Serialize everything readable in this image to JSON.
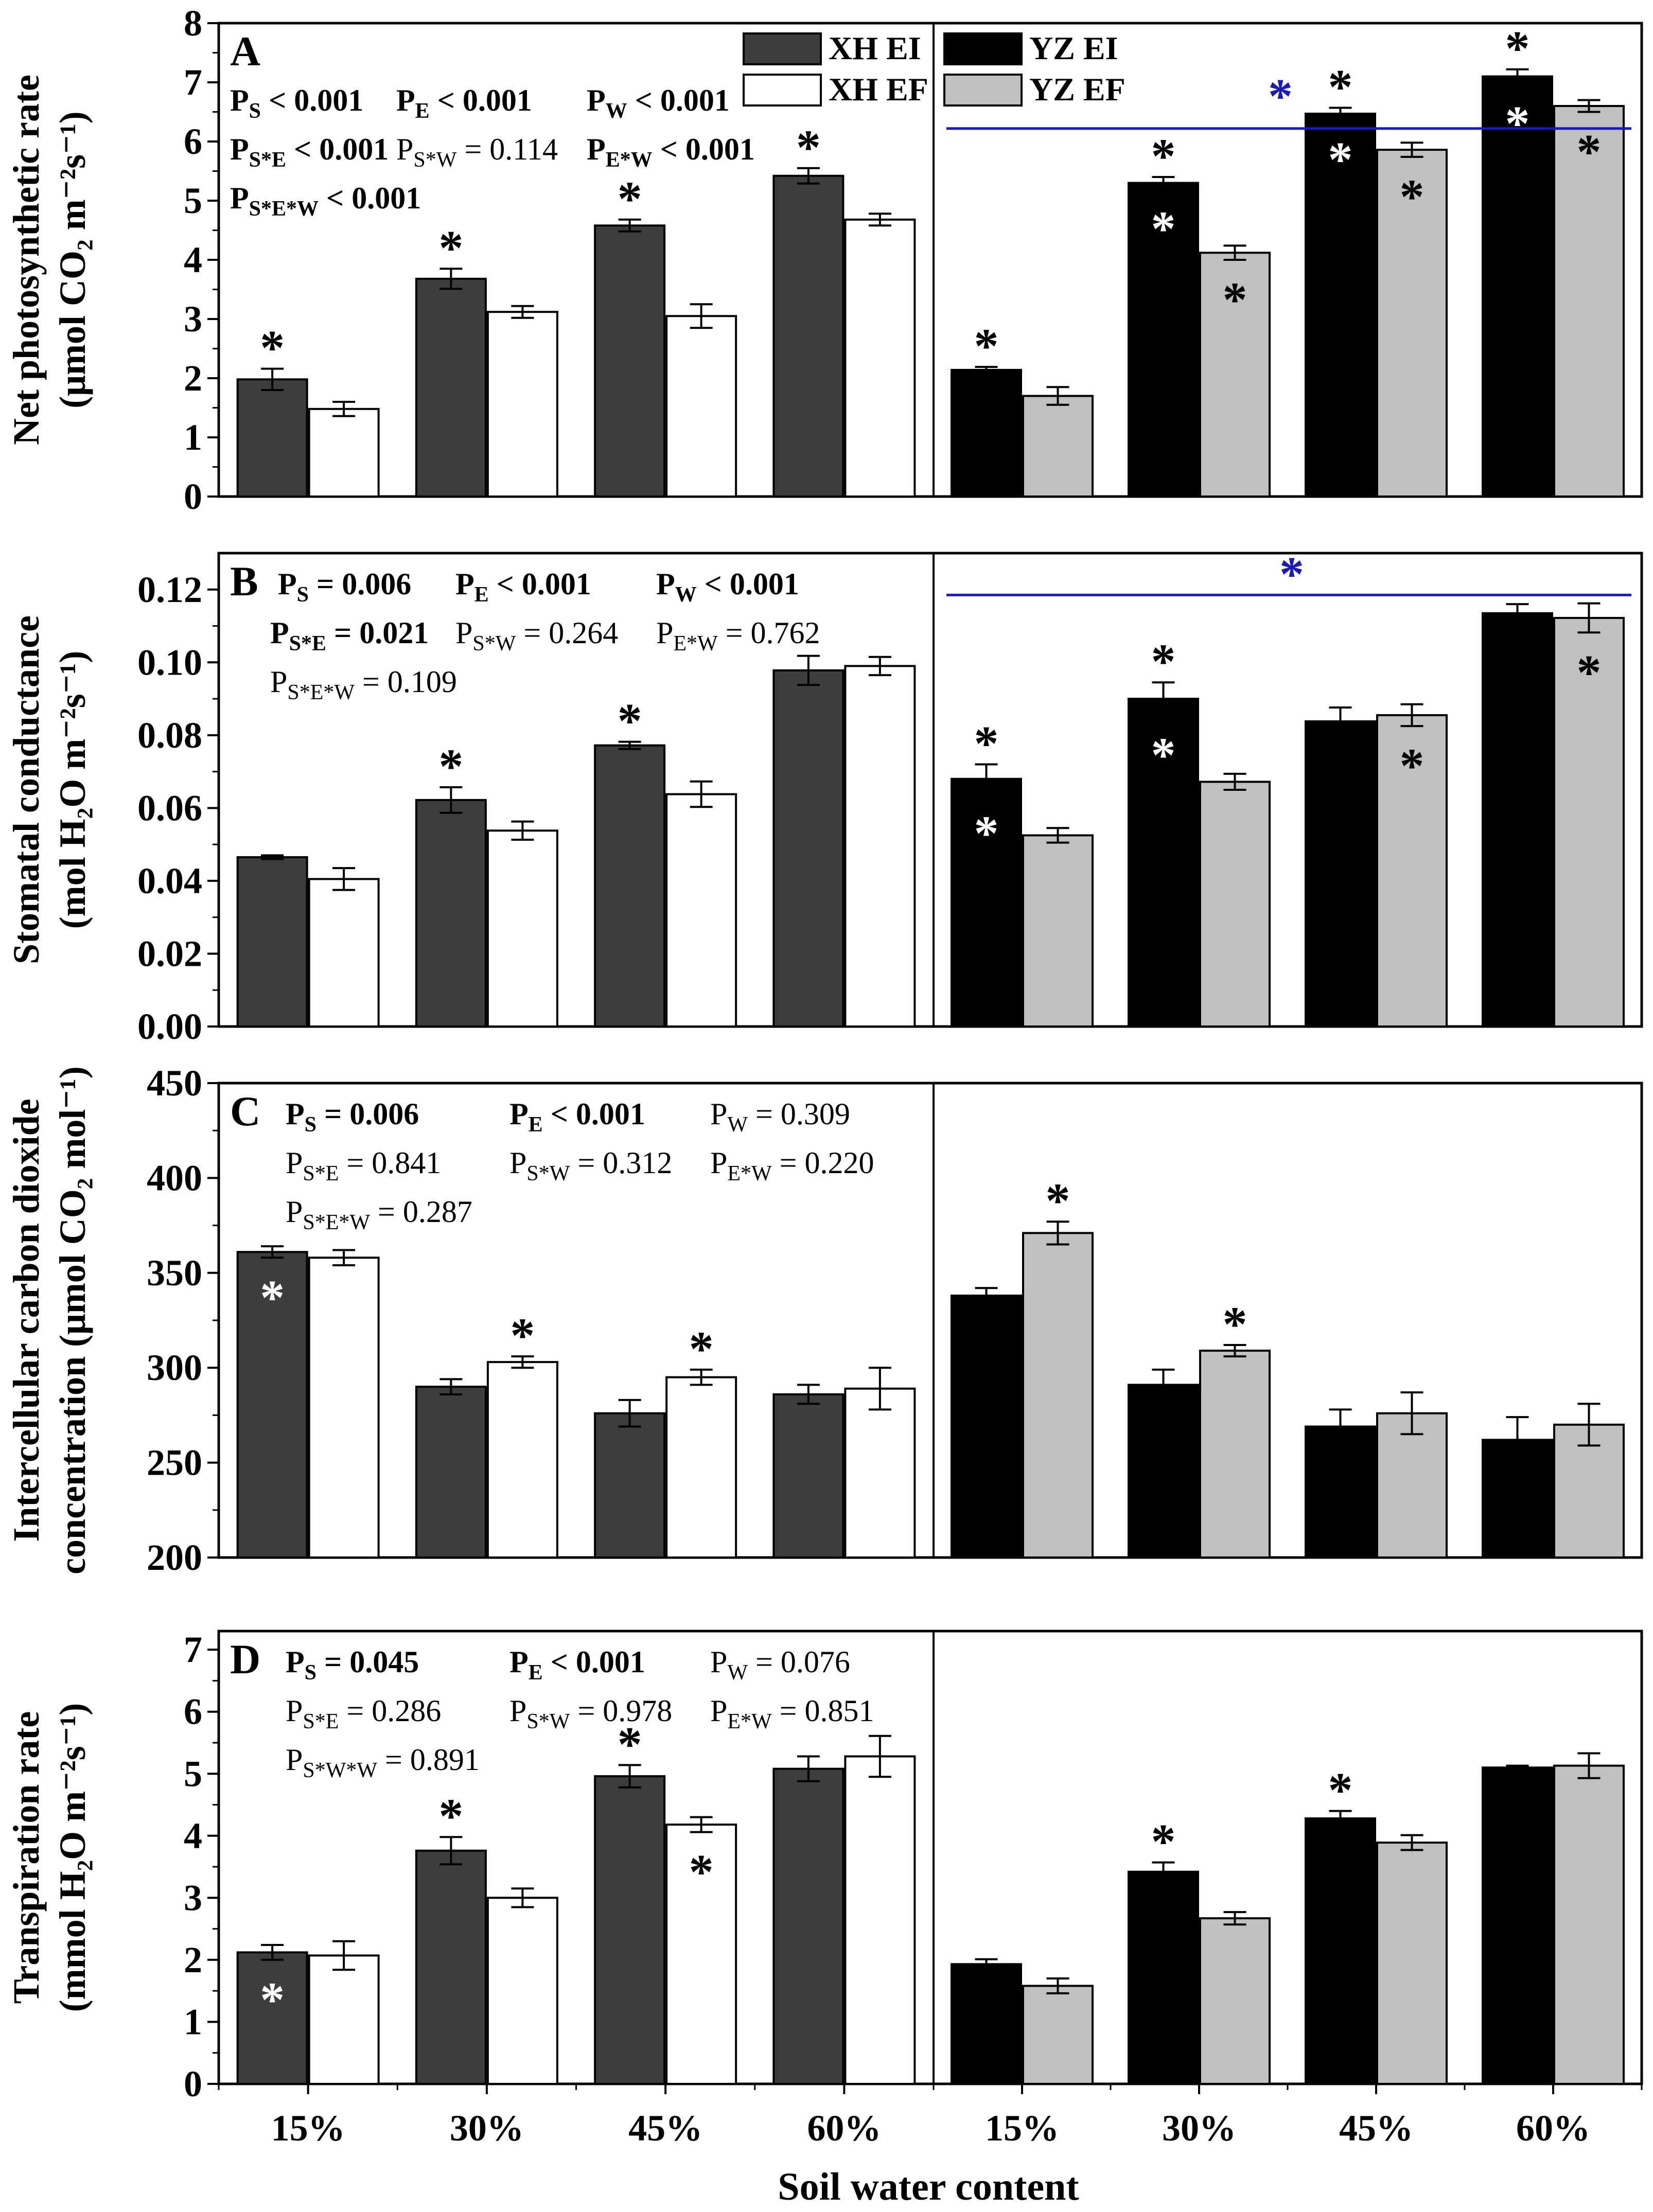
{
  "figure": {
    "x_title": "Soil water content",
    "x_categories": [
      "15%",
      "30%",
      "45%",
      "60%",
      "15%",
      "30%",
      "45%",
      "60%"
    ]
  },
  "legend": [
    {
      "label": "XH EI",
      "color": "#3d3d3d"
    },
    {
      "label": "XH EF",
      "color": "#ffffff"
    },
    {
      "label": "YZ EI",
      "color": "#000000"
    },
    {
      "label": "YZ EF",
      "color": "#c0c0c0"
    }
  ],
  "colors": {
    "xh_ei": "#3d3d3d",
    "xh_ef": "#ffffff",
    "yz_ei": "#000000",
    "yz_ef": "#c0c0c0",
    "reference_line": "#1a1ab4"
  },
  "chart_data": [
    {
      "type": "bar",
      "panel": "A",
      "ylabel": [
        "Net photosynthetic rate",
        "(μmol CO₂ m⁻²s⁻¹)"
      ],
      "ylim": [
        0,
        8
      ],
      "yticks": [
        "0",
        "1",
        "2",
        "3",
        "4",
        "5",
        "6",
        "7",
        "8"
      ],
      "categories": [
        "15%",
        "30%",
        "45%",
        "60%"
      ],
      "series": [
        {
          "name": "XH EI",
          "values": [
            1.98,
            3.68,
            4.58,
            5.42
          ],
          "errors": [
            0.18,
            0.17,
            0.1,
            0.13
          ],
          "stars_above": [
            true,
            true,
            true,
            true
          ],
          "stars_inside": [
            false,
            false,
            false,
            false
          ]
        },
        {
          "name": "XH EF",
          "values": [
            1.48,
            3.12,
            3.05,
            4.68
          ],
          "errors": [
            0.12,
            0.1,
            0.2,
            0.1
          ],
          "stars_above": [
            false,
            false,
            false,
            false
          ],
          "stars_inside": [
            false,
            false,
            false,
            false
          ]
        },
        {
          "name": "YZ EI",
          "values": [
            2.14,
            5.3,
            6.47,
            7.1
          ],
          "errors": [
            0.05,
            0.1,
            0.1,
            0.12
          ],
          "stars_above": [
            true,
            true,
            true,
            true
          ],
          "stars_inside": [
            false,
            true,
            true,
            true
          ]
        },
        {
          "name": "YZ EF",
          "values": [
            1.7,
            4.12,
            5.86,
            6.6
          ],
          "errors": [
            0.15,
            0.12,
            0.12,
            0.1
          ],
          "stars_above": [
            false,
            false,
            false,
            false
          ],
          "stars_inside": [
            false,
            true,
            true,
            true
          ]
        }
      ],
      "reference_line": {
        "value": 6.22,
        "star": "*"
      },
      "stats": [
        [
          {
            "text": "PS < 0.001",
            "bold": true
          },
          {
            "text": "PE < 0.001",
            "bold": true
          },
          {
            "text": "PW < 0.001",
            "bold": true
          }
        ],
        [
          {
            "text": "PS*E < 0.001",
            "bold": true
          },
          {
            "text": "PS*W = 0.114",
            "bold": false
          },
          {
            "text": "PE*W < 0.001",
            "bold": true
          }
        ],
        [
          {
            "text": "PS*E*W < 0.001",
            "bold": true
          }
        ]
      ]
    },
    {
      "type": "bar",
      "panel": "B",
      "ylabel": [
        "Stomatal conductance",
        "(mol H₂O m⁻²s⁻¹)"
      ],
      "ylim": [
        0,
        0.13
      ],
      "yticks": [
        "0.00",
        "0.02",
        "0.04",
        "0.06",
        "0.08",
        "0.10",
        "0.12"
      ],
      "categories": [
        "15%",
        "30%",
        "45%",
        "60%"
      ],
      "series": [
        {
          "name": "XH EI",
          "values": [
            0.0465,
            0.0622,
            0.0772,
            0.0978
          ],
          "errors": [
            0.0005,
            0.0035,
            0.001,
            0.004
          ],
          "stars_above": [
            false,
            true,
            true,
            false
          ],
          "stars_inside": [
            false,
            false,
            false,
            false
          ]
        },
        {
          "name": "XH EF",
          "values": [
            0.0405,
            0.0538,
            0.0638,
            0.099
          ],
          "errors": [
            0.003,
            0.0025,
            0.0035,
            0.0025
          ],
          "stars_above": [
            false,
            false,
            false,
            false
          ],
          "stars_inside": [
            false,
            false,
            false,
            false
          ]
        },
        {
          "name": "YZ EI",
          "values": [
            0.068,
            0.09,
            0.0838,
            0.1135
          ],
          "errors": [
            0.004,
            0.0045,
            0.0038,
            0.0025
          ],
          "stars_above": [
            true,
            true,
            false,
            false
          ],
          "stars_inside": [
            true,
            true,
            false,
            false
          ]
        },
        {
          "name": "YZ EF",
          "values": [
            0.0525,
            0.0672,
            0.0855,
            0.1122
          ],
          "errors": [
            0.002,
            0.0022,
            0.003,
            0.004
          ],
          "stars_above": [
            false,
            false,
            false,
            false
          ],
          "stars_inside": [
            false,
            false,
            true,
            true
          ]
        }
      ],
      "reference_line": {
        "value": 0.1185,
        "star": "*"
      },
      "stats": [
        [
          {
            "text": "PS = 0.006",
            "bold": true
          },
          {
            "text": "PE < 0.001",
            "bold": true
          },
          {
            "text": "PW < 0.001",
            "bold": true
          }
        ],
        [
          {
            "text": "PS*E = 0.021",
            "bold": true
          },
          {
            "text": "PS*W = 0.264",
            "bold": false
          },
          {
            "text": "PE*W = 0.762",
            "bold": false
          }
        ],
        [
          {
            "text": "PS*E*W = 0.109",
            "bold": false
          }
        ]
      ]
    },
    {
      "type": "bar",
      "panel": "C",
      "ylabel": [
        "Intercellular carbon dioxide",
        "concentration (μmol CO₂ mol⁻¹)"
      ],
      "ylim": [
        200,
        450
      ],
      "yticks": [
        "200",
        "250",
        "300",
        "350",
        "400",
        "450"
      ],
      "categories": [
        "15%",
        "30%",
        "45%",
        "60%"
      ],
      "series": [
        {
          "name": "XH EI",
          "values": [
            361,
            290,
            276,
            286
          ],
          "errors": [
            3,
            4,
            7,
            5
          ],
          "stars_above": [
            false,
            false,
            false,
            false
          ],
          "stars_inside": [
            true,
            false,
            false,
            false
          ]
        },
        {
          "name": "XH EF",
          "values": [
            358,
            303,
            295,
            289
          ],
          "errors": [
            4,
            3,
            4,
            11
          ],
          "stars_above": [
            false,
            true,
            true,
            false
          ],
          "stars_inside": [
            false,
            false,
            false,
            false
          ]
        },
        {
          "name": "YZ EI",
          "values": [
            338,
            291,
            269,
            262
          ],
          "errors": [
            4,
            8,
            9,
            12
          ],
          "stars_above": [
            false,
            false,
            false,
            false
          ],
          "stars_inside": [
            false,
            false,
            false,
            false
          ]
        },
        {
          "name": "YZ EF",
          "values": [
            371,
            309,
            276,
            270
          ],
          "errors": [
            6,
            3,
            11,
            11
          ],
          "stars_above": [
            true,
            true,
            false,
            false
          ],
          "stars_inside": [
            false,
            false,
            false,
            false
          ]
        }
      ],
      "reference_line": null,
      "stats": [
        [
          {
            "text": "PS = 0.006",
            "bold": true
          },
          {
            "text": "PE < 0.001",
            "bold": true
          },
          {
            "text": "PW = 0.309",
            "bold": false
          }
        ],
        [
          {
            "text": "PS*E = 0.841",
            "bold": false
          },
          {
            "text": "PS*W = 0.312",
            "bold": false
          },
          {
            "text": "PE*W = 0.220",
            "bold": false
          }
        ],
        [
          {
            "text": "PS*E*W = 0.287",
            "bold": false
          }
        ]
      ]
    },
    {
      "type": "bar",
      "panel": "D",
      "ylabel": [
        "Transpiration rate",
        "(mmol H₂O m⁻²s⁻¹)"
      ],
      "ylim": [
        0,
        7.3
      ],
      "yticks": [
        "0",
        "1",
        "2",
        "3",
        "4",
        "5",
        "6",
        "7"
      ],
      "categories": [
        "15%",
        "30%",
        "45%",
        "60%"
      ],
      "series": [
        {
          "name": "XH EI",
          "values": [
            2.12,
            3.76,
            4.96,
            5.08
          ],
          "errors": [
            0.12,
            0.22,
            0.18,
            0.2
          ],
          "stars_above": [
            false,
            true,
            true,
            false
          ],
          "stars_inside": [
            true,
            false,
            false,
            false
          ]
        },
        {
          "name": "XH EF",
          "values": [
            2.07,
            3.0,
            4.18,
            5.28
          ],
          "errors": [
            0.23,
            0.15,
            0.12,
            0.33
          ],
          "stars_above": [
            false,
            false,
            false,
            false
          ],
          "stars_inside": [
            false,
            false,
            true,
            false
          ]
        },
        {
          "name": "YZ EI",
          "values": [
            1.93,
            3.42,
            4.28,
            5.1
          ],
          "errors": [
            0.08,
            0.15,
            0.12,
            0.03
          ],
          "stars_above": [
            false,
            true,
            true,
            false
          ],
          "stars_inside": [
            false,
            false,
            false,
            false
          ]
        },
        {
          "name": "YZ EF",
          "values": [
            1.58,
            2.67,
            3.89,
            5.13
          ],
          "errors": [
            0.12,
            0.1,
            0.12,
            0.2
          ],
          "stars_above": [
            false,
            false,
            false,
            false
          ],
          "stars_inside": [
            false,
            false,
            false,
            false
          ]
        }
      ],
      "reference_line": null,
      "stats": [
        [
          {
            "text": "PS = 0.045",
            "bold": true
          },
          {
            "text": "PE < 0.001",
            "bold": true
          },
          {
            "text": "PW = 0.076",
            "bold": false
          }
        ],
        [
          {
            "text": "PS*E = 0.286",
            "bold": false
          },
          {
            "text": "PS*W = 0.978",
            "bold": false
          },
          {
            "text": "PE*W = 0.851",
            "bold": false
          }
        ],
        [
          {
            "text": "PS*W*W = 0.891",
            "bold": false
          }
        ]
      ]
    }
  ]
}
